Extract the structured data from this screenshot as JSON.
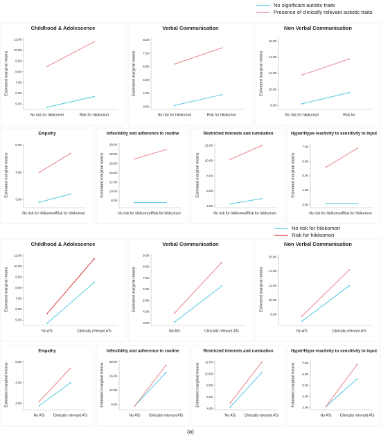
{
  "chart_data": [
    {
      "type": "line",
      "title": "Childhood & Adolescence",
      "y_label": "Estimated marginal means",
      "categories": [
        "No risk for hikikomori",
        "Risk for hikikomori"
      ],
      "series": [
        {
          "name": "No significant autistic traits",
          "color": "#4fc9e0",
          "values": [
            4.7,
            5.7
          ]
        },
        {
          "name": "Presence of clinically relevant autistic traits",
          "color": "#e8838b",
          "values": [
            8.5,
            10.8
          ]
        }
      ],
      "ylim": [
        4.5,
        11.2
      ],
      "yticks": [
        {
          "value": 5,
          "label": "5.00"
        },
        {
          "value": 6,
          "label": "6.00"
        },
        {
          "value": 7,
          "label": "7.00"
        },
        {
          "value": 8,
          "label": "8.00"
        },
        {
          "value": 9,
          "label": "9.00"
        },
        {
          "value": 10,
          "label": "10.00"
        },
        {
          "value": 11,
          "label": "11.00"
        }
      ]
    },
    {
      "type": "line",
      "title": "Verbal Communication",
      "y_label": "Estimated marginal means",
      "categories": [
        "No risk for hikikomori",
        "Risk for hikikomori"
      ],
      "series": [
        {
          "color": "#4fc9e0",
          "values": [
            3.1,
            3.9
          ]
        },
        {
          "color": "#e8838b",
          "values": [
            6.2,
            7.4
          ]
        }
      ],
      "ylim": [
        2.8,
        8.2
      ],
      "yticks": [
        {
          "value": 3,
          "label": "3.00"
        },
        {
          "value": 4,
          "label": "4.00"
        },
        {
          "value": 5,
          "label": "5.00"
        },
        {
          "value": 6,
          "label": "6.00"
        },
        {
          "value": 7,
          "label": "7.00"
        },
        {
          "value": 8,
          "label": "8.00"
        }
      ]
    },
    {
      "type": "line",
      "title": "Non Verbal Communication",
      "y_label": "Estimated marginal means",
      "categories": [
        "No risk for hikikomori",
        "Risk for"
      ],
      "series": [
        {
          "color": "#4fc9e0",
          "values": [
            8.2,
            9.6
          ]
        },
        {
          "color": "#e8838b",
          "values": [
            11.8,
            13.8
          ]
        }
      ],
      "ylim": [
        7.5,
        16.5
      ],
      "yticks": [
        {
          "value": 8,
          "label": "8.00"
        },
        {
          "value": 10,
          "label": "10.00"
        },
        {
          "value": 12,
          "label": "12.00"
        },
        {
          "value": 14,
          "label": "14.00"
        },
        {
          "value": 16,
          "label": "16.00"
        }
      ]
    },
    {
      "type": "line",
      "title": "Empathy",
      "y_label": "Estimated marginal means",
      "categories": [
        "No risk for hikikomori",
        "Risk for hikikomori"
      ],
      "series": [
        {
          "color": "#4fc9e0",
          "values": [
            2.9,
            3.2
          ]
        },
        {
          "color": "#e8838b",
          "values": [
            4.0,
            4.7
          ]
        }
      ],
      "ylim": [
        2.7,
        5.1
      ],
      "yticks": [
        {
          "value": 3,
          "label": "3.00"
        },
        {
          "value": 4,
          "label": "4.00"
        },
        {
          "value": 5,
          "label": "5.00"
        }
      ]
    },
    {
      "type": "line",
      "title": "Inflexibility and adherence to routine",
      "y_label": "Estimated marginal means",
      "categories": [
        "No risk for hikikomori",
        "Risk for hikikomori"
      ],
      "series": [
        {
          "color": "#4fc9e0",
          "values": [
            7.6,
            7.6
          ]
        },
        {
          "color": "#e8838b",
          "values": [
            17,
            19
          ]
        }
      ],
      "ylim": [
        6.5,
        20.5
      ],
      "yticks": [
        {
          "value": 8,
          "label": "8.00"
        },
        {
          "value": 10,
          "label": "10.00"
        },
        {
          "value": 12,
          "label": "12.00"
        },
        {
          "value": 14,
          "label": "14.00"
        },
        {
          "value": 16,
          "label": "16.00"
        },
        {
          "value": 18,
          "label": "18.00"
        },
        {
          "value": 20,
          "label": "20.00"
        }
      ]
    },
    {
      "type": "line",
      "title": "Restricted interests and rumination",
      "y_label": "Estimated marginal means",
      "categories": [
        "No risk for hikikomori",
        "Risk for hikikomori"
      ],
      "series": [
        {
          "color": "#4fc9e0",
          "values": [
            4.3,
            5.0
          ]
        },
        {
          "color": "#e8838b",
          "values": [
            10.2,
            12.0
          ]
        }
      ],
      "ylim": [
        3.8,
        12.4
      ],
      "yticks": [
        {
          "value": 4,
          "label": "4.00"
        },
        {
          "value": 6,
          "label": "6.00"
        },
        {
          "value": 8,
          "label": "8.00"
        },
        {
          "value": 10,
          "label": "10.00"
        },
        {
          "value": 12,
          "label": "12.00"
        }
      ]
    },
    {
      "type": "line",
      "title": "Hyper/Hypo-reactivity to sensitivity to input",
      "y_label": "Estimated marginal means",
      "categories": [
        "No risk for hikikomori",
        "Risk for hikikomori"
      ],
      "series": [
        {
          "color": "#4fc9e0",
          "values": [
            3.1,
            3.1
          ]
        },
        {
          "color": "#e8838b",
          "values": [
            5.6,
            6.9
          ]
        }
      ],
      "ylim": [
        2.8,
        7.3
      ],
      "yticks": [
        {
          "value": 3,
          "label": "3.00"
        },
        {
          "value": 4,
          "label": "4.00"
        },
        {
          "value": 5,
          "label": "5.00"
        },
        {
          "value": 6,
          "label": "6.00"
        },
        {
          "value": 7,
          "label": "7.00"
        }
      ]
    },
    {
      "type": "line",
      "title": "Childhood & Adolescence",
      "y_label": "Estimated marginal means",
      "categories": [
        "No ATs",
        "Clinically relevant ATs"
      ],
      "series": [
        {
          "name": "No risk  for hikikomori",
          "color": "#4fc9e0",
          "values": [
            4.7,
            8.5
          ]
        },
        {
          "name": "Risk for hikikomori",
          "color": "#d93a3a",
          "values": [
            5.6,
            10.7
          ]
        }
      ],
      "ylim": [
        4.5,
        11.2
      ],
      "yticks": [
        {
          "value": 5,
          "label": "5.00"
        },
        {
          "value": 6,
          "label": "6.00"
        },
        {
          "value": 7,
          "label": "7.00"
        },
        {
          "value": 8,
          "label": "8.00"
        },
        {
          "value": 9,
          "label": "9.00"
        },
        {
          "value": 10,
          "label": "10.00"
        },
        {
          "value": 11,
          "label": "11.00"
        }
      ]
    },
    {
      "type": "line",
      "title": "Verbal Communication",
      "y_label": "Estimated marginal means",
      "categories": [
        "No ATs",
        "Clinically relevant ATs"
      ],
      "series": [
        {
          "color": "#4fc9e0",
          "values": [
            3.1,
            6.3
          ]
        },
        {
          "color": "#e8838b",
          "values": [
            3.9,
            8.4
          ]
        }
      ],
      "ylim": [
        2.8,
        9.2
      ],
      "yticks": [
        {
          "value": 3,
          "label": "3.00"
        },
        {
          "value": 4,
          "label": "4.00"
        },
        {
          "value": 5,
          "label": "5.00"
        },
        {
          "value": 6,
          "label": "6.00"
        },
        {
          "value": 7,
          "label": "7.00"
        },
        {
          "value": 8,
          "label": "8.00"
        },
        {
          "value": 9,
          "label": "9.00"
        }
      ]
    },
    {
      "type": "line",
      "title": "Non Verbal Communication",
      "y_label": "Estimated marginal means",
      "categories": [
        "No ATs",
        "Clinically relevant ATs"
      ],
      "series": [
        {
          "color": "#4fc9e0",
          "values": [
            7.1,
            12.0
          ]
        },
        {
          "color": "#e8838b",
          "values": [
            7.8,
            14.2
          ]
        }
      ],
      "ylim": [
        6.5,
        16.5
      ],
      "yticks": [
        {
          "value": 8,
          "label": "8.00"
        },
        {
          "value": 10,
          "label": "10.00"
        },
        {
          "value": 12,
          "label": "12.00"
        },
        {
          "value": 14,
          "label": "14.00"
        },
        {
          "value": 16,
          "label": "16.00"
        }
      ]
    },
    {
      "type": "line",
      "title": "Empathy",
      "y_label": "Estimated marginal means",
      "categories": [
        "No ATs",
        "Clinically relevant ATs"
      ],
      "series": [
        {
          "color": "#4fc9e0",
          "values": [
            2.9,
            4.0
          ]
        },
        {
          "color": "#e8838b",
          "values": [
            3.1,
            4.7
          ]
        }
      ],
      "ylim": [
        2.7,
        5.1
      ],
      "yticks": [
        {
          "value": 3,
          "label": "3.00"
        },
        {
          "value": 4,
          "label": "4.00"
        },
        {
          "value": 5,
          "label": "5.00"
        }
      ]
    },
    {
      "type": "line",
      "title": "Inflexibility and adherence to routine",
      "y_label": "Estimated marginal means",
      "categories": [
        "No ATs",
        "Clinically relevant ATs"
      ],
      "series": [
        {
          "color": "#4fc9e0",
          "values": [
            7.6,
            17.0
          ]
        },
        {
          "color": "#e8838b",
          "values": [
            7.6,
            19.0
          ]
        }
      ],
      "ylim": [
        6.5,
        20.5
      ],
      "yticks": [
        {
          "value": 8,
          "label": "8.00"
        },
        {
          "value": 12,
          "label": "12.00"
        },
        {
          "value": 16,
          "label": "16.00"
        },
        {
          "value": 20,
          "label": "20.00"
        }
      ]
    },
    {
      "type": "line",
      "title": "Restricted interests and rumination",
      "y_label": "Estimated marginal means",
      "categories": [
        "No ATs",
        "Clinically relevant ATs"
      ],
      "series": [
        {
          "color": "#4fc9e0",
          "values": [
            4.3,
            10.2
          ]
        },
        {
          "color": "#e8838b",
          "values": [
            5.0,
            12.0
          ]
        }
      ],
      "ylim": [
        3.8,
        12.4
      ],
      "yticks": [
        {
          "value": 4,
          "label": "4.00"
        },
        {
          "value": 6,
          "label": "6.00"
        },
        {
          "value": 8,
          "label": "8.00"
        },
        {
          "value": 10,
          "label": "10.00"
        },
        {
          "value": 12,
          "label": "12.00"
        }
      ]
    },
    {
      "type": "line",
      "title": "Hyper/Hypo-reactivity to sensitivity to input",
      "y_label": "Estimated marginal means",
      "categories": [
        "No ATs",
        "Clinically relevant ATs"
      ],
      "series": [
        {
          "color": "#4fc9e0",
          "values": [
            3.1,
            5.6
          ]
        },
        {
          "color": "#e8838b",
          "values": [
            3.1,
            6.9
          ]
        }
      ],
      "ylim": [
        2.8,
        7.3
      ],
      "yticks": [
        {
          "value": 3,
          "label": "3.00"
        },
        {
          "value": 4,
          "label": "4.00"
        },
        {
          "value": 5,
          "label": "5.00"
        },
        {
          "value": 6,
          "label": "6.00"
        },
        {
          "value": 7,
          "label": "7.00"
        }
      ]
    }
  ],
  "caption": "(a)"
}
